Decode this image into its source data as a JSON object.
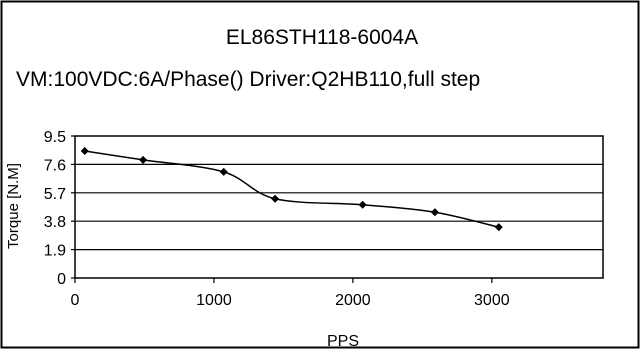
{
  "chart_data": {
    "type": "line",
    "title": "EL86STH118-6004A",
    "subtitle": "VM:100VDC:6A/Phase() Driver:Q2HB110,full step",
    "xlabel": "PPS",
    "ylabel": "Torque [N.M]",
    "xlim": [
      0,
      3800
    ],
    "ylim": [
      0,
      9.5
    ],
    "x_ticks": [
      {
        "value": 0,
        "label": "0"
      },
      {
        "value": 1000,
        "label": "1000"
      },
      {
        "value": 2000,
        "label": "2000"
      },
      {
        "value": 3000,
        "label": "3000"
      }
    ],
    "y_ticks": [
      {
        "value": 0,
        "label": "0"
      },
      {
        "value": 1.9,
        "label": "1.9"
      },
      {
        "value": 3.8,
        "label": "3.8"
      },
      {
        "value": 5.7,
        "label": "5.7"
      },
      {
        "value": 7.6,
        "label": "7.6"
      },
      {
        "value": 9.5,
        "label": "9.5"
      }
    ],
    "grid": "horizontal",
    "legend": "none",
    "colors": {
      "line": "#000000",
      "marker": "#000000",
      "grid": "#000000",
      "border": "#000000",
      "background": "#ffffff"
    },
    "series": [
      {
        "x": [
          70,
          490,
          1070,
          1440,
          2070,
          2590,
          3050
        ],
        "y": [
          8.5,
          7.9,
          7.1,
          5.3,
          4.9,
          4.4,
          3.4
        ]
      }
    ]
  }
}
